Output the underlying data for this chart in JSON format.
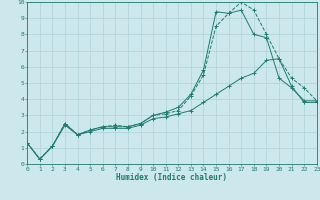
{
  "xlabel": "Humidex (Indice chaleur)",
  "bg_color": "#cce8ec",
  "grid_color": "#a8cdd3",
  "line_color": "#1e7b70",
  "xlim": [
    0,
    23
  ],
  "ylim": [
    0,
    10
  ],
  "xticks": [
    0,
    1,
    2,
    3,
    4,
    5,
    6,
    7,
    8,
    9,
    10,
    11,
    12,
    13,
    14,
    15,
    16,
    17,
    18,
    19,
    20,
    21,
    22,
    23
  ],
  "yticks": [
    0,
    1,
    2,
    3,
    4,
    5,
    6,
    7,
    8,
    9,
    10
  ],
  "line1_x": [
    0,
    1,
    2,
    3,
    4,
    5,
    6,
    7,
    8,
    9,
    10,
    11,
    12,
    13,
    14,
    15,
    16,
    17,
    18,
    19,
    20,
    21,
    22,
    23
  ],
  "line1_y": [
    1.3,
    0.3,
    1.1,
    2.5,
    1.8,
    2.1,
    2.3,
    2.4,
    2.3,
    2.5,
    3.0,
    3.1,
    3.3,
    4.2,
    5.5,
    8.5,
    9.3,
    10.0,
    9.5,
    8.0,
    6.5,
    5.3,
    4.7,
    3.9
  ],
  "line2_x": [
    0,
    1,
    2,
    3,
    4,
    5,
    6,
    7,
    8,
    9,
    10,
    11,
    12,
    13,
    14,
    15,
    16,
    17,
    18,
    19,
    20,
    21,
    22,
    23
  ],
  "line2_y": [
    1.3,
    0.3,
    1.1,
    2.5,
    1.8,
    2.1,
    2.3,
    2.3,
    2.3,
    2.5,
    3.0,
    3.2,
    3.5,
    4.3,
    5.8,
    9.4,
    9.3,
    9.5,
    8.0,
    7.8,
    5.3,
    4.7,
    3.9,
    3.9
  ],
  "line3_x": [
    0,
    1,
    2,
    3,
    4,
    5,
    6,
    7,
    8,
    9,
    10,
    11,
    12,
    13,
    14,
    15,
    16,
    17,
    18,
    19,
    20,
    21,
    22,
    23
  ],
  "line3_y": [
    1.3,
    0.3,
    1.1,
    2.4,
    1.8,
    2.0,
    2.2,
    2.2,
    2.2,
    2.4,
    2.8,
    2.9,
    3.1,
    3.3,
    3.8,
    4.3,
    4.8,
    5.3,
    5.6,
    6.4,
    6.5,
    4.8,
    3.8,
    3.8
  ],
  "xlabel_fontsize": 5.5,
  "tick_fontsize": 4.5,
  "marker_size": 2.5,
  "line_width": 0.7
}
